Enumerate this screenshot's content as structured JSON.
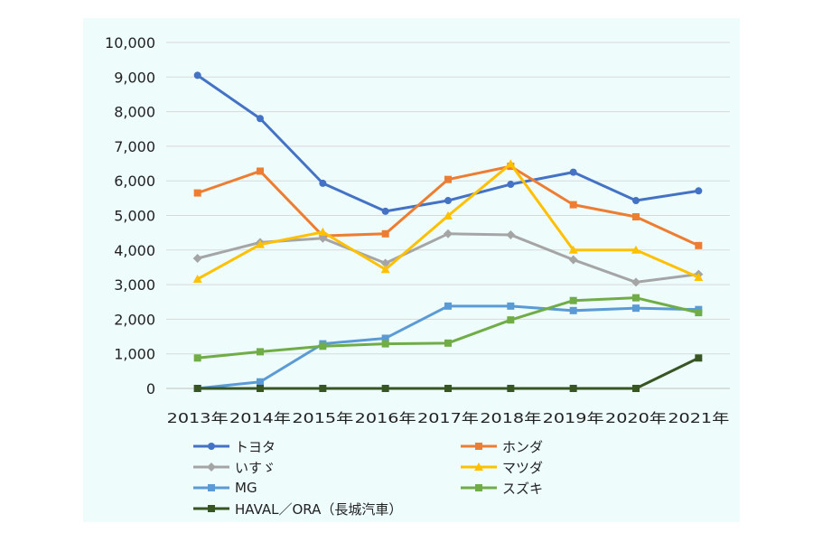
{
  "chart_data": {
    "type": "line",
    "categories": [
      "2013年",
      "2014年",
      "2015年",
      "2016年",
      "2017年",
      "2018年",
      "2019年",
      "2020年",
      "2021年"
    ],
    "ylim": [
      0,
      10000
    ],
    "yticks": [
      "0",
      "1,000",
      "2,000",
      "3,000",
      "4,000",
      "5,000",
      "6,000",
      "7,000",
      "8,000",
      "9,000",
      "10,000"
    ],
    "grid": true,
    "legend_position": "bottom",
    "series": [
      {
        "name": "トヨタ",
        "color": "#4472c4",
        "marker": "circle",
        "values": [
          9050,
          7800,
          5930,
          5120,
          5430,
          5900,
          6250,
          5430,
          5710
        ]
      },
      {
        "name": "ホンダ",
        "color": "#ed7d31",
        "marker": "square",
        "values": [
          5650,
          6280,
          4410,
          4470,
          6040,
          6420,
          5310,
          4960,
          4130
        ]
      },
      {
        "name": "いすゞ",
        "color": "#a5a5a5",
        "marker": "diamond",
        "values": [
          3760,
          4220,
          4340,
          3620,
          4470,
          4440,
          3720,
          3070,
          3300
        ]
      },
      {
        "name": "マツダ",
        "color": "#ffc000",
        "marker": "triangle",
        "values": [
          3160,
          4160,
          4520,
          3440,
          4990,
          6490,
          4000,
          4000,
          3210
        ]
      },
      {
        "name": "MG",
        "color": "#5b9bd5",
        "marker": "square",
        "values": [
          0,
          190,
          1290,
          1450,
          2380,
          2380,
          2250,
          2320,
          2280
        ]
      },
      {
        "name": "スズキ",
        "color": "#70ad47",
        "marker": "square",
        "values": [
          880,
          1060,
          1220,
          1290,
          1310,
          1980,
          2540,
          2620,
          2190
        ]
      },
      {
        "name": "HAVAL／ORA（長城汽車）",
        "color": "#375623",
        "marker": "square",
        "values": [
          0,
          0,
          0,
          0,
          0,
          0,
          0,
          0,
          880
        ]
      }
    ]
  }
}
